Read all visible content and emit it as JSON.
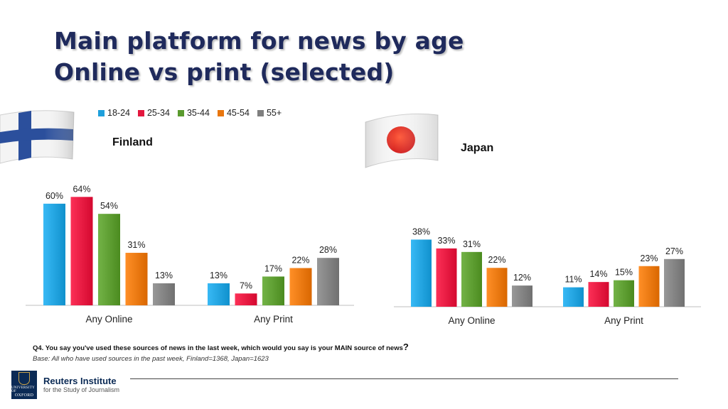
{
  "title": {
    "line1": "Main platform for news by age",
    "line2": "Online vs print (selected)"
  },
  "legend": [
    {
      "label": "18-24",
      "color": "#1fa0dc"
    },
    {
      "label": "25-34",
      "color": "#e3173e"
    },
    {
      "label": "35-44",
      "color": "#5a9a2e"
    },
    {
      "label": "45-54",
      "color": "#e8760e"
    },
    {
      "label": "55+",
      "color": "#7f7f7f"
    }
  ],
  "chart_data": [
    {
      "type": "bar",
      "title": "Finland",
      "categories": [
        "Any Online",
        "Any Print"
      ],
      "series": [
        {
          "name": "18-24",
          "values": [
            60,
            13
          ]
        },
        {
          "name": "25-34",
          "values": [
            64,
            7
          ]
        },
        {
          "name": "35-44",
          "values": [
            54,
            17
          ]
        },
        {
          "name": "45-54",
          "values": [
            31,
            22
          ]
        },
        {
          "name": "55+",
          "values": [
            13,
            28
          ]
        }
      ],
      "unit": "%",
      "ylim": [
        0,
        70
      ],
      "grid": false
    },
    {
      "type": "bar",
      "title": "Japan",
      "categories": [
        "Any Online",
        "Any Print"
      ],
      "series": [
        {
          "name": "18-24",
          "values": [
            38,
            11
          ]
        },
        {
          "name": "25-34",
          "values": [
            33,
            14
          ]
        },
        {
          "name": "35-44",
          "values": [
            31,
            15
          ]
        },
        {
          "name": "45-54",
          "values": [
            22,
            23
          ]
        },
        {
          "name": "55+",
          "values": [
            12,
            27
          ]
        }
      ],
      "unit": "%",
      "ylim": [
        0,
        45
      ],
      "grid": false
    }
  ],
  "footnote": {
    "question": "Q4.  You say you've used these sources of news in the last week, which would you say is your MAIN source of news",
    "question_mark": "?",
    "base": "Base: All who have used sources in the past week, Finland=1368, Japan=1623"
  },
  "logo": {
    "crest_line1": "UNIVERSITY OF",
    "crest_line2": "OXFORD",
    "name": "Reuters Institute",
    "subtitle": "for the Study of Journalism"
  }
}
